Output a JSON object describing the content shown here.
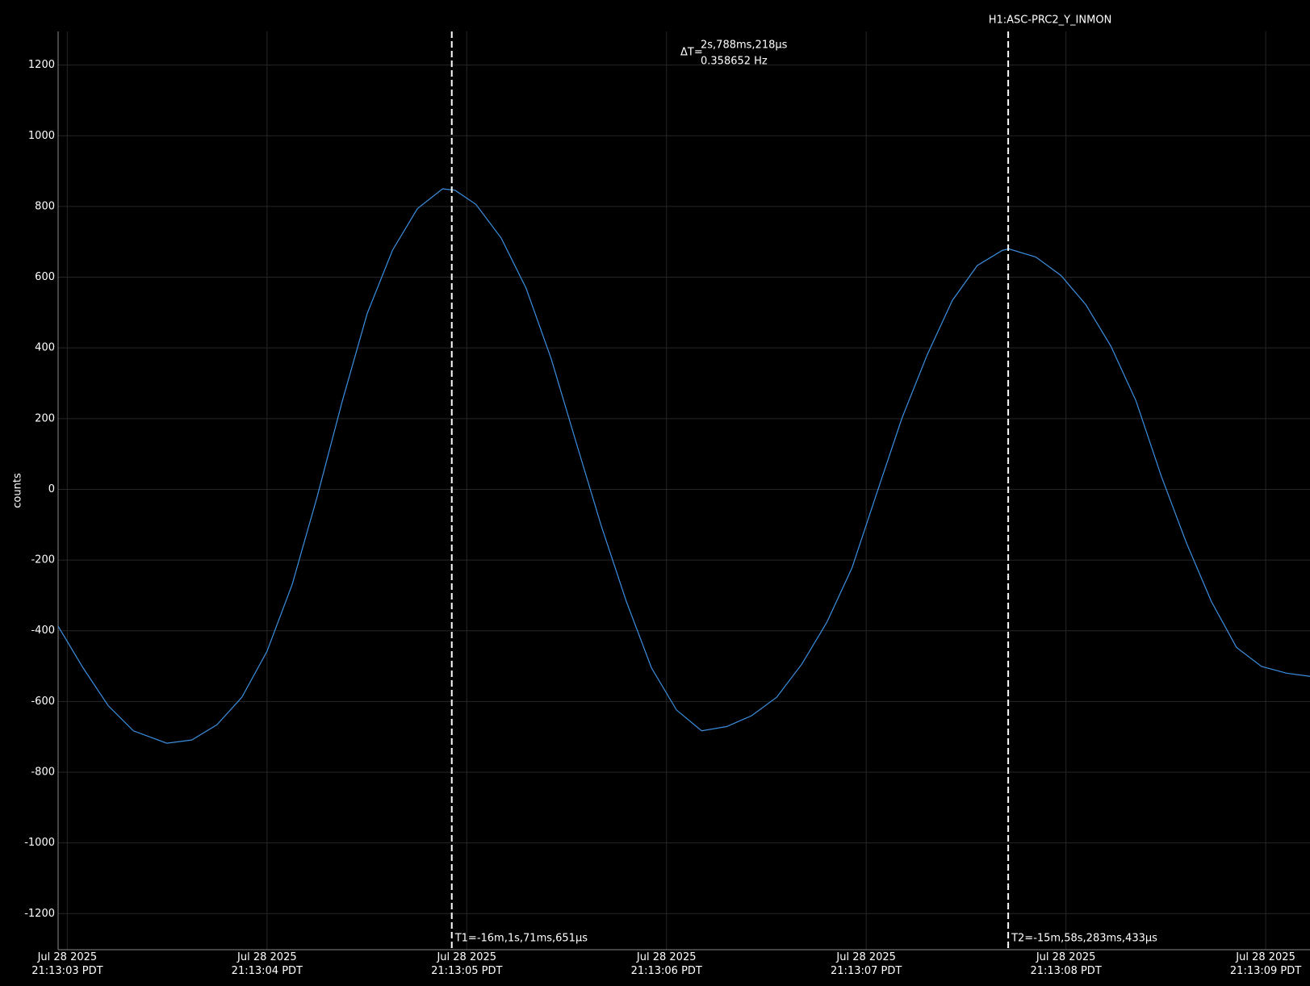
{
  "chart_data": {
    "type": "line",
    "ylabel": "counts",
    "series": [
      {
        "name": "H1:ASC-PRC2_Y_INMON",
        "color": "#3b8fe0",
        "x": [
          2.954,
          3.079,
          3.205,
          3.331,
          3.498,
          3.623,
          3.749,
          3.874,
          4.0,
          4.126,
          4.251,
          4.377,
          4.502,
          4.628,
          4.753,
          4.879,
          4.941,
          5.046,
          5.172,
          5.297,
          5.423,
          5.548,
          5.674,
          5.799,
          5.925,
          6.05,
          6.176,
          6.301,
          6.427,
          6.552,
          6.678,
          6.803,
          6.929,
          7.054,
          7.18,
          7.305,
          7.431,
          7.556,
          7.682,
          7.715,
          7.849,
          7.975,
          8.1,
          8.226,
          8.351,
          8.477,
          8.603,
          8.728,
          8.854,
          8.979,
          9.105,
          9.222
        ],
        "values": [
          -387,
          -505,
          -612,
          -683,
          -718,
          -709,
          -666,
          -588,
          -458,
          -269,
          -21,
          250,
          498,
          676,
          794,
          850,
          846,
          806,
          711,
          569,
          369,
          132,
          -104,
          -317,
          -505,
          -624,
          -683,
          -671,
          -640,
          -588,
          -494,
          -376,
          -222,
          -9,
          203,
          380,
          534,
          633,
          676,
          680,
          657,
          605,
          522,
          404,
          250,
          38,
          -151,
          -317,
          -447,
          -501,
          -520,
          -529
        ]
      }
    ],
    "xlim": [
      2.954,
      9.222
    ],
    "xticks": [
      {
        "value": 3,
        "label": "Jul 28 2025\n21:13:03 PDT"
      },
      {
        "value": 4,
        "label": "Jul 28 2025\n21:13:04 PDT"
      },
      {
        "value": 5,
        "label": "Jul 28 2025\n21:13:05 PDT"
      },
      {
        "value": 6,
        "label": "Jul 28 2025\n21:13:06 PDT"
      },
      {
        "value": 7,
        "label": "Jul 28 2025\n21:13:07 PDT"
      },
      {
        "value": 8,
        "label": "Jul 28 2025\n21:13:08 PDT"
      },
      {
        "value": 9,
        "label": "Jul 28 2025\n21:13:09 PDT"
      }
    ],
    "ylim": [
      -1302,
      1295
    ],
    "yticks": [
      -1200,
      -1000,
      -800,
      -600,
      -400,
      -200,
      0,
      200,
      400,
      600,
      800,
      1000,
      1200
    ],
    "grid": true,
    "cursors": [
      {
        "x": 4.925,
        "label": "T1=-16m,1s,71ms,651µs"
      },
      {
        "x": 7.711,
        "label": "T2=-15m,58s,283ms,433µs"
      }
    ],
    "delta": {
      "label": "ΔT=",
      "time": "2s,788ms,218µs",
      "frequency": "0.358652 Hz"
    }
  }
}
